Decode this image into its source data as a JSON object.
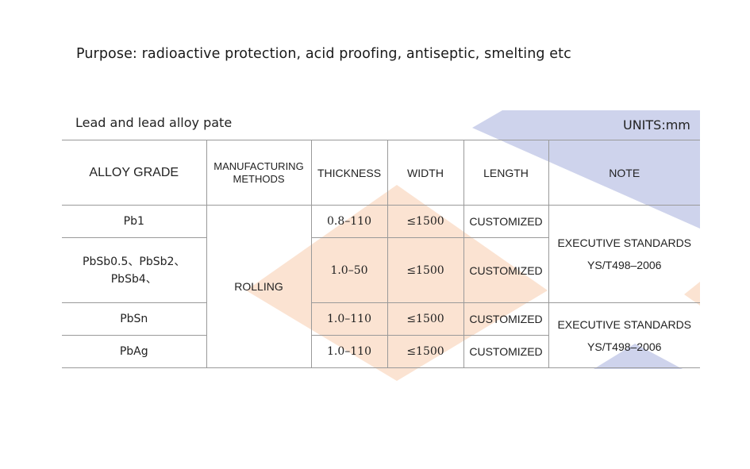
{
  "purpose": "Purpose: radioactive protection, acid proofing, antiseptic, smelting etc",
  "subtitle": "Lead and lead alloy pate",
  "units": "UNITS:mm",
  "table": {
    "headers": {
      "alloy_grade": "ALLOY GRADE",
      "methods_line1": "MANUFACTURING",
      "methods_line2": "METHODS",
      "thickness": "THICKNESS",
      "width": "WIDTH",
      "length": "LENGTH",
      "note": "NOTE"
    },
    "method": "ROLLING",
    "rows": [
      {
        "grade_line1": "Pb1",
        "grade_line2": "",
        "thickness": "0.8–110",
        "width": "≤1500",
        "length": "CUSTOMIZED"
      },
      {
        "grade_line1": "PbSb0.5、PbSb2、",
        "grade_line2": "PbSb4、",
        "thickness": "1.0–50",
        "width": "≤1500",
        "length": "CUSTOMIZED"
      },
      {
        "grade_line1": "PbSn",
        "grade_line2": "",
        "thickness": "1.0–110",
        "width": "≤1500",
        "length": "CUSTOMIZED"
      },
      {
        "grade_line1": "PbAg",
        "grade_line2": "",
        "thickness": "1.0–110",
        "width": "≤1500",
        "length": "CUSTOMIZED"
      }
    ],
    "notes": [
      {
        "line1": "EXECUTIVE STANDARDS",
        "line2": "YS/T498–2006"
      },
      {
        "line1": "EXECUTIVE STANDARDS",
        "line2": "YS/T498–2006"
      }
    ]
  },
  "colors": {
    "watermark_blue": "#ced3ec",
    "watermark_peach": "#fbe3d2",
    "rule_gray": "#9a9a9a"
  }
}
